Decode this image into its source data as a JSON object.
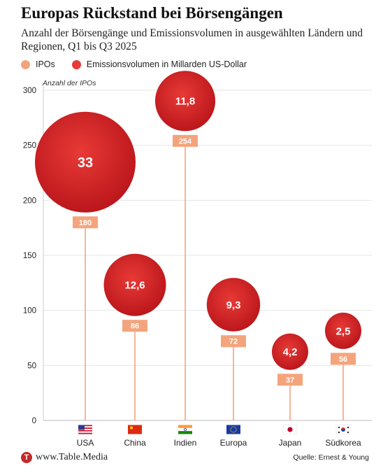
{
  "colors": {
    "ipo": "#f4a47c",
    "volume_light": "#e83a36",
    "volume_dark": "#b8141a",
    "grid": "#e6e6e6"
  },
  "header": {
    "title": "Europas Rückstand bei Börsengängen",
    "subtitle": "Anzahl der Börsengänge und Emissionsvolumen in ausgewählten Ländern und Regionen, Q1 bis Q3 2025"
  },
  "legend": {
    "ipo_label": "IPOs",
    "volume_label": "Emissionsvolumen in Millarden US-Dollar"
  },
  "footer": {
    "logo_letter": "T",
    "brand": "www.Table.Media",
    "source": "Quelle: Ernest & Young"
  },
  "chart_data": {
    "type": "scatter",
    "title": "Europas Rückstand bei Börsengängen",
    "ylabel": "Anzahl der IPOs",
    "ylim": [
      0,
      300
    ],
    "yticks": [
      0,
      50,
      100,
      150,
      200,
      250,
      300
    ],
    "grid": true,
    "legend_position": "top-left",
    "categories": [
      "USA",
      "China",
      "Indien",
      "Europa",
      "Japan",
      "Südkorea"
    ],
    "flag_icons": [
      "flag-usa-icon",
      "flag-china-icon",
      "flag-india-icon",
      "flag-eu-icon",
      "flag-japan-icon",
      "flag-south-korea-icon"
    ],
    "series": [
      {
        "name": "IPOs",
        "values": [
          180,
          86,
          254,
          72,
          37,
          56
        ],
        "labels": [
          "180",
          "86",
          "254",
          "72",
          "37",
          "56"
        ]
      },
      {
        "name": "Emissionsvolumen in Millarden US-Dollar",
        "values": [
          33,
          12.6,
          11.8,
          9.3,
          4.2,
          2.5
        ],
        "labels": [
          "33",
          "12,6",
          "11,8",
          "9,3",
          "4,2",
          "2,5"
        ]
      }
    ]
  }
}
